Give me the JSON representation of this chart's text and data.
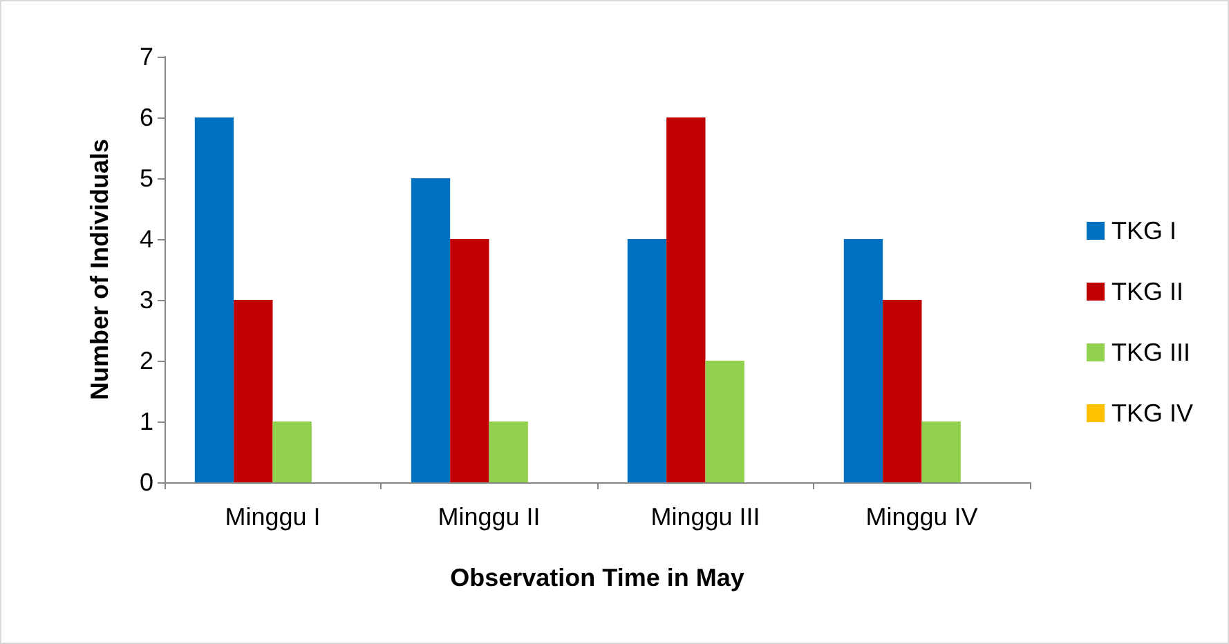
{
  "chart_data": {
    "type": "bar",
    "xlabel": "Observation Time in May",
    "ylabel": "Number of Individuals",
    "categories": [
      "Minggu I",
      "Minggu II",
      "Minggu III",
      "Minggu IV"
    ],
    "series": [
      {
        "name": "TKG I",
        "color": "#0070c0",
        "values": [
          6,
          5,
          4,
          4
        ]
      },
      {
        "name": "TKG II",
        "color": "#c00000",
        "values": [
          3,
          4,
          6,
          3
        ]
      },
      {
        "name": "TKG III",
        "color": "#92d050",
        "values": [
          1,
          1,
          2,
          1
        ]
      },
      {
        "name": "TKG IV",
        "color": "#ffc000",
        "values": [
          0,
          0,
          0,
          0
        ]
      }
    ],
    "ylim": [
      0,
      7
    ],
    "yticks": [
      0,
      1,
      2,
      3,
      4,
      5,
      6,
      7
    ],
    "grid": false,
    "legend": "right"
  }
}
